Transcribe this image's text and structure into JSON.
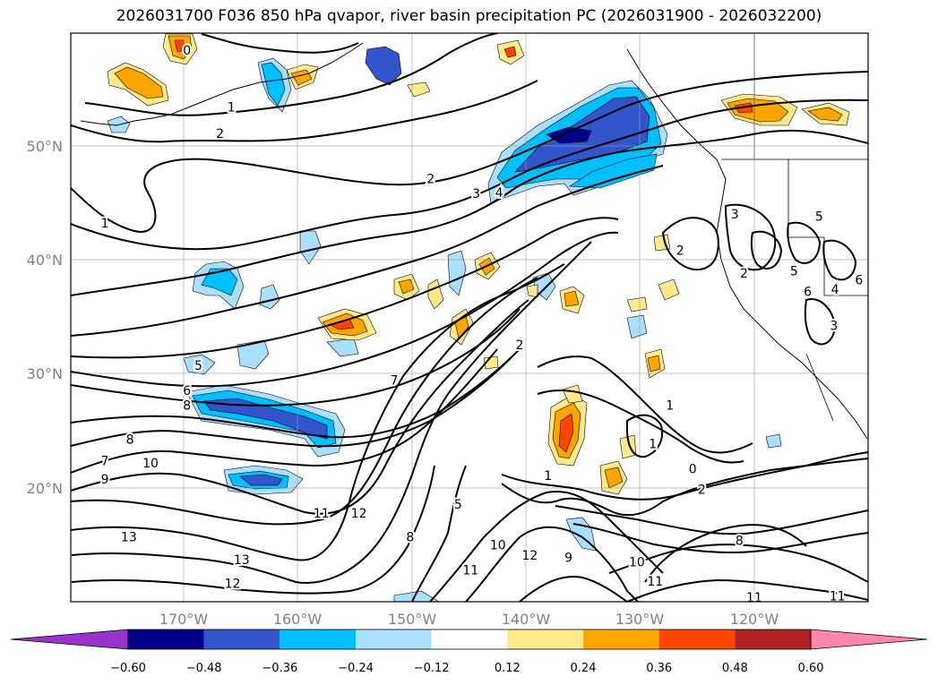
{
  "title": "2026031700 F036 850 hPa qvapor, river basin precipitation PC (2026031900 - 2026032200)",
  "map": {
    "lon_range": [
      -180,
      -110
    ],
    "lat_range": [
      10,
      60
    ],
    "grid": true
  },
  "axes": {
    "lat_ticks": [
      {
        "value": 50,
        "label": "50°N"
      },
      {
        "value": 40,
        "label": "40°N"
      },
      {
        "value": 30,
        "label": "30°N"
      },
      {
        "value": 20,
        "label": "20°N"
      }
    ],
    "lon_ticks": [
      {
        "value": -170,
        "label": "170°W"
      },
      {
        "value": -160,
        "label": "160°W"
      },
      {
        "value": -150,
        "label": "150°W"
      },
      {
        "value": -140,
        "label": "140°W"
      },
      {
        "value": -130,
        "label": "130°W"
      },
      {
        "value": -120,
        "label": "120°W"
      }
    ]
  },
  "colorbar": {
    "colors": [
      "#9933cc",
      "#00008b",
      "#3355cc",
      "#00bfff",
      "#aadfff",
      "#ffffff",
      "#ffe98a",
      "#ffa500",
      "#ff4500",
      "#b22222",
      "#ff88aa"
    ],
    "labels": [
      "−0.60",
      "−0.48",
      "−0.36",
      "−0.24",
      "−0.12",
      "0.12",
      "0.24",
      "0.36",
      "0.48",
      "0.60"
    ],
    "extend": "both"
  },
  "colors": {
    "deep_blue": "#00008b",
    "blue": "#3355cc",
    "cyan": "#00bfff",
    "light_blue": "#aadfff",
    "yellow": "#ffe98a",
    "orange": "#ffa500",
    "red_orange": "#ff4500"
  },
  "contour_labels": [
    {
      "text": "0",
      "lon": -169.8,
      "lat": 58.5
    },
    {
      "text": "1",
      "lon": -165.9,
      "lat": 53.5
    },
    {
      "text": "2",
      "lon": -166.9,
      "lat": 51.2
    },
    {
      "text": "1",
      "lon": -177,
      "lat": 43.3
    },
    {
      "text": "2",
      "lon": -148.4,
      "lat": 47.2
    },
    {
      "text": "3",
      "lon": -144.4,
      "lat": 45.9
    },
    {
      "text": "4",
      "lon": -142.4,
      "lat": 46
    },
    {
      "text": "5",
      "lon": -168.8,
      "lat": 30.8
    },
    {
      "text": "6",
      "lon": -169.8,
      "lat": 28.6
    },
    {
      "text": "8",
      "lon": -169.8,
      "lat": 27.3
    },
    {
      "text": "8",
      "lon": -174.8,
      "lat": 24.3
    },
    {
      "text": "7",
      "lon": -177,
      "lat": 22.4
    },
    {
      "text": "9",
      "lon": -177,
      "lat": 20.8
    },
    {
      "text": "10",
      "lon": -173,
      "lat": 22.2
    },
    {
      "text": "7",
      "lon": -151.6,
      "lat": 29.5
    },
    {
      "text": "11",
      "lon": -158,
      "lat": 17.8
    },
    {
      "text": "12",
      "lon": -154.7,
      "lat": 17.8
    },
    {
      "text": "13",
      "lon": -174.9,
      "lat": 15.7
    },
    {
      "text": "13",
      "lon": -165,
      "lat": 13.7
    },
    {
      "text": "12",
      "lon": -165.8,
      "lat": 11.6
    },
    {
      "text": "5",
      "lon": -146,
      "lat": 18.6
    },
    {
      "text": "8",
      "lon": -150.2,
      "lat": 15.7
    },
    {
      "text": "10",
      "lon": -142.5,
      "lat": 15
    },
    {
      "text": "11",
      "lon": -144.9,
      "lat": 12.8
    },
    {
      "text": "12",
      "lon": -139.7,
      "lat": 14.1
    },
    {
      "text": "9",
      "lon": -136.3,
      "lat": 13.9
    },
    {
      "text": "10",
      "lon": -130.3,
      "lat": 13.5
    },
    {
      "text": "11",
      "lon": -128.7,
      "lat": 11.8
    },
    {
      "text": "8",
      "lon": -121.3,
      "lat": 15.4
    },
    {
      "text": "11",
      "lon": -120,
      "lat": 10.4
    },
    {
      "text": "11",
      "lon": -112.7,
      "lat": 10.5
    },
    {
      "text": "2",
      "lon": -140.6,
      "lat": 32.6
    },
    {
      "text": "1",
      "lon": -127.4,
      "lat": 27.3
    },
    {
      "text": "1",
      "lon": -128.9,
      "lat": 23.9
    },
    {
      "text": "0",
      "lon": -125.4,
      "lat": 21.7
    },
    {
      "text": "2",
      "lon": -124.6,
      "lat": 19.9
    },
    {
      "text": "1",
      "lon": -138.1,
      "lat": 21.1
    },
    {
      "text": "2",
      "lon": -126.5,
      "lat": 40.9
    },
    {
      "text": "3",
      "lon": -121.7,
      "lat": 44.1
    },
    {
      "text": "5",
      "lon": -114.3,
      "lat": 43.9
    },
    {
      "text": "2",
      "lon": -120.9,
      "lat": 38.9
    },
    {
      "text": "5",
      "lon": -116.5,
      "lat": 39.1
    },
    {
      "text": "6",
      "lon": -115.3,
      "lat": 37.3
    },
    {
      "text": "4",
      "lon": -112.9,
      "lat": 37.5
    },
    {
      "text": "6",
      "lon": -110.8,
      "lat": 38.3
    },
    {
      "text": "3",
      "lon": -113,
      "lat": 34.3
    }
  ]
}
